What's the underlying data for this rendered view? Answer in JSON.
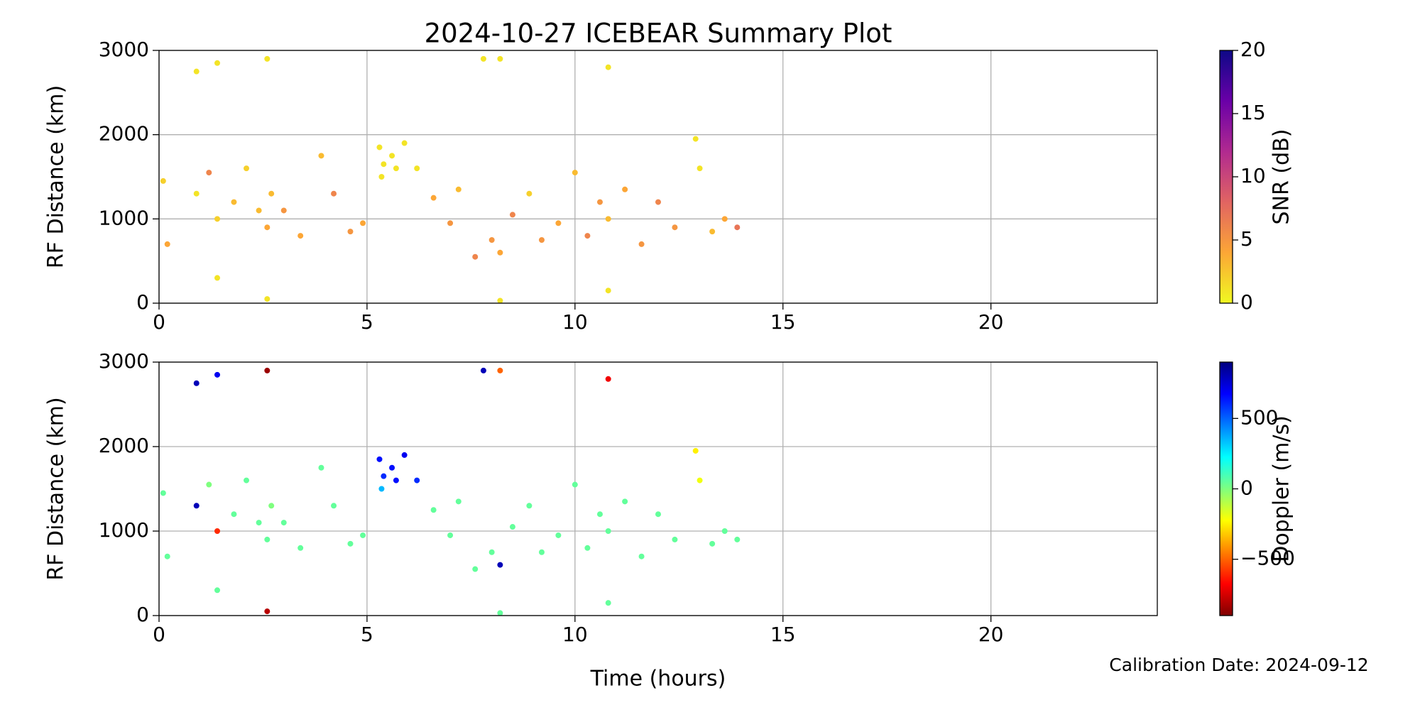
{
  "chart_data": [
    {
      "type": "scatter",
      "title": "2024-10-27 ICEBEAR Summary Plot",
      "y_label": "RF Distance (km)",
      "xlim": [
        0,
        24
      ],
      "ylim": [
        0,
        3000
      ],
      "xticks": [
        0,
        5,
        10,
        15,
        20
      ],
      "yticks": [
        0,
        1000,
        2000,
        3000
      ],
      "grid": true,
      "x": [
        0.1,
        0.2,
        0.9,
        0.9,
        1.2,
        1.4,
        1.4,
        1.4,
        1.8,
        2.1,
        2.4,
        2.6,
        2.6,
        2.6,
        2.7,
        3.0,
        3.4,
        3.9,
        4.2,
        4.6,
        4.9,
        5.3,
        5.35,
        5.4,
        5.6,
        5.7,
        5.9,
        6.2,
        6.6,
        7.0,
        7.2,
        7.6,
        7.8,
        8.0,
        8.2,
        8.2,
        8.2,
        8.5,
        8.9,
        9.2,
        9.6,
        10.0,
        10.3,
        10.6,
        10.8,
        10.8,
        10.8,
        11.2,
        11.6,
        12.0,
        12.4,
        12.9,
        13.0,
        13.3,
        13.6,
        13.9
      ],
      "values": [
        1450,
        700,
        2750,
        1300,
        1550,
        2850,
        1000,
        300,
        1200,
        1600,
        1100,
        2900,
        900,
        50,
        1300,
        1100,
        800,
        1750,
        1300,
        850,
        950,
        1850,
        1500,
        1650,
        1750,
        1600,
        1900,
        1600,
        1250,
        950,
        1350,
        550,
        2900,
        750,
        2900,
        600,
        30,
        1050,
        1300,
        750,
        950,
        1550,
        800,
        1200,
        2800,
        1000,
        150,
        1350,
        700,
        1200,
        900,
        1950,
        1600,
        850,
        1000,
        900
      ],
      "c": [
        2,
        4,
        1,
        1,
        6,
        1,
        2,
        1,
        3,
        2,
        3,
        1,
        4,
        1,
        3,
        5,
        4,
        3,
        6,
        5,
        4,
        1,
        1,
        1,
        1,
        1,
        1,
        1,
        4,
        5,
        3,
        6,
        1,
        5,
        1,
        4,
        1,
        6,
        2,
        5,
        4,
        3,
        6,
        5,
        1,
        3,
        1,
        4,
        5,
        6,
        5,
        1,
        1,
        3,
        4,
        7
      ],
      "colorbar": {
        "label": "SNR (dB)",
        "lim": [
          0,
          20
        ],
        "ticks": [
          0,
          5,
          10,
          15,
          20
        ],
        "colormap": [
          "#f0f921",
          "#fca636",
          "#e16462",
          "#b12a90",
          "#6a00a8",
          "#0d0887"
        ]
      }
    },
    {
      "type": "scatter",
      "y_label": "RF Distance (km)",
      "x_label": "Time (hours)",
      "annotation": "Calibration Date: 2024-09-12",
      "xlim": [
        0,
        24
      ],
      "ylim": [
        0,
        3000
      ],
      "xticks": [
        0,
        5,
        10,
        15,
        20
      ],
      "yticks": [
        0,
        1000,
        2000,
        3000
      ],
      "grid": true,
      "x": [
        0.1,
        0.2,
        0.9,
        0.9,
        1.2,
        1.4,
        1.4,
        1.4,
        1.8,
        2.1,
        2.4,
        2.6,
        2.6,
        2.6,
        2.7,
        3.0,
        3.4,
        3.9,
        4.2,
        4.6,
        4.9,
        5.3,
        5.35,
        5.4,
        5.6,
        5.7,
        5.9,
        6.2,
        6.6,
        7.0,
        7.2,
        7.6,
        7.8,
        8.0,
        8.2,
        8.2,
        8.2,
        8.5,
        8.9,
        9.2,
        9.6,
        10.0,
        10.3,
        10.6,
        10.8,
        10.8,
        10.8,
        11.2,
        11.6,
        12.0,
        12.4,
        12.9,
        13.0,
        13.3,
        13.6,
        13.9
      ],
      "values": [
        1450,
        700,
        2750,
        1300,
        1550,
        2850,
        1000,
        300,
        1200,
        1600,
        1100,
        2900,
        900,
        50,
        1300,
        1100,
        800,
        1750,
        1300,
        850,
        950,
        1850,
        1500,
        1650,
        1750,
        1600,
        1900,
        1600,
        1250,
        950,
        1350,
        550,
        2900,
        750,
        2900,
        600,
        30,
        1050,
        1300,
        750,
        950,
        1550,
        800,
        1200,
        2800,
        1000,
        150,
        1350,
        700,
        1200,
        900,
        1950,
        1600,
        850,
        1000,
        900
      ],
      "c": [
        50,
        50,
        800,
        800,
        0,
        700,
        -600,
        50,
        50,
        50,
        50,
        -850,
        50,
        -800,
        0,
        50,
        50,
        50,
        50,
        50,
        50,
        650,
        350,
        600,
        650,
        650,
        700,
        600,
        50,
        50,
        50,
        50,
        800,
        50,
        -500,
        800,
        50,
        50,
        50,
        50,
        50,
        50,
        50,
        50,
        -700,
        50,
        50,
        50,
        50,
        50,
        50,
        -250,
        -200,
        50,
        50,
        50
      ],
      "colorbar": {
        "label": "Doppler (m/s)",
        "lim": [
          -900,
          900
        ],
        "ticks": [
          {
            "value": -500,
            "label": "−500"
          },
          0,
          500
        ],
        "colormap": [
          "#7f0000",
          "#ff0000",
          "#ff7f00",
          "#ffff00",
          "#7fff7f",
          "#00ffff",
          "#007fff",
          "#0000ff",
          "#00007f"
        ]
      }
    }
  ]
}
